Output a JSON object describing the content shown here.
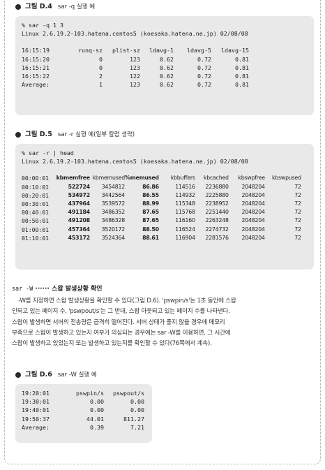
{
  "fig4": {
    "label": "그림 D.4",
    "caption": "sar -q 실행 예",
    "lines": [
      "% sar -q 1 3",
      "Linux 2.6.19.2-103.hatena.centos5 (koesaka.hatena.ne.jp) 02/08/08"
    ],
    "headers": [
      "16:15:19",
      "runq-sz",
      "plist-sz",
      "ldavg-1",
      "ldavg-5",
      "ldavg-15"
    ],
    "rows": [
      [
        "16:15:20",
        "0",
        "123",
        "0.62",
        "0.72",
        "0.81"
      ],
      [
        "16:15:21",
        "0",
        "123",
        "0.62",
        "0.72",
        "0.81"
      ],
      [
        "16:15:22",
        "2",
        "122",
        "0.62",
        "0.72",
        "0.81"
      ],
      [
        "Average:",
        "1",
        "123",
        "0.62",
        "0.72",
        "0.81"
      ]
    ]
  },
  "fig5": {
    "label": "그림 D.5",
    "caption": "sar -r 실행 예(일부 칼럼 생략)",
    "lines": [
      "% sar -r | head",
      "Linux 2.6.19.2-103.hatena.centos5 (koesaka.hatena.ne.jp) 02/08/08"
    ],
    "headers": [
      "00:00:01",
      "kbmemfree",
      "kbmemused",
      "%memused",
      "kbbuffers",
      "kbcached",
      "kbswpfree",
      "kbswpused"
    ],
    "rows": [
      [
        "00:10:01",
        "522724",
        "3454812",
        "86.86",
        "114516",
        "2236880",
        "2048204",
        "72"
      ],
      [
        "00:20:01",
        "534972",
        "3442564",
        "86.55",
        "114932",
        "2225880",
        "2048204",
        "72"
      ],
      [
        "00:30:01",
        "437964",
        "3539572",
        "88.99",
        "115348",
        "2238952",
        "2048204",
        "72"
      ],
      [
        "00:40:01",
        "491184",
        "3486352",
        "87.65",
        "115768",
        "2251440",
        "2048204",
        "72"
      ],
      [
        "00:50:01",
        "491208",
        "3486328",
        "87.65",
        "116160",
        "2263248",
        "2048204",
        "72"
      ],
      [
        "01:00:01",
        "457364",
        "3520172",
        "88.50",
        "116524",
        "2274732",
        "2048204",
        "72"
      ],
      [
        "01:10:01",
        "453172",
        "3524364",
        "88.61",
        "116904",
        "2281576",
        "2048204",
        "72"
      ]
    ]
  },
  "section": {
    "cmd": "sar -W",
    "dots": " ······ ",
    "title": "스왑 발생상황 확인",
    "paragraph": [
      "-W를 지정하면 스왑 발생상황을 확인할 수 있다(그림 D.6). 'pswpin/s'는 1초 동안에 스왑",
      "인되고 있는 페이지 수, 'pswpout/s'는 그 반대, 스왑 아웃되고 있는 페이지 수를 나타낸다.",
      "스왑이 발생하면 서버의 전송량은 급격히 떨어진다. 서버 상태가 좋지 않을 경우에 메모리",
      "부족으로 스왑이 발생하고 있는지 여부가 의심되는 경우에는 sar -W를 이용하면, 그 시간에",
      "스왑이 발생하고 있었는지 또는 발생하고 있는지를 확인할 수 있다(76쪽에서 계속)."
    ]
  },
  "fig6": {
    "label": "그림 D.6",
    "caption": "sar -W 실행 예",
    "headers": [
      "19:20:01",
      "pswpin/s",
      "pswpout/s"
    ],
    "rows": [
      [
        "19:30:01",
        "0.00",
        "0.00"
      ],
      [
        "19:40:01",
        "0.00",
        "0.00"
      ],
      [
        "19:50:37",
        "44.01",
        "811.27"
      ],
      [
        "Average:",
        "0.39",
        "7.21"
      ]
    ]
  }
}
